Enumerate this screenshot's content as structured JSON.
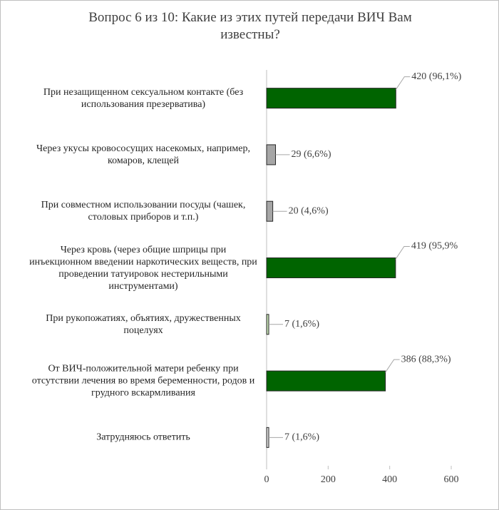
{
  "chart_data": {
    "type": "hbar",
    "title": "Вопрос 6 из 10: Какие из этих путей передачи ВИЧ Вам известны?",
    "categories": [
      "При  незащищенном сексуальном  контакте (без использования презерватива)",
      "Через укусы кровососущих насекомых, например,  комаров, клещей",
      "При совместном использовании посуды (чашек, столовых приборов и т.п.)",
      "Через кровь (через общие шприцы при инъекционном введении наркотических веществ, при проведении татуировок нестерильными инструментами)",
      "При рукопожатиях, объятиях,  дружественных поцелуях",
      "От ВИЧ-положительной матери ребенку при отсутствии лечения во время беременности, родов и грудного вскармливания",
      "Затрудняюсь  ответить"
    ],
    "values": [
      420,
      29,
      20,
      419,
      7,
      386,
      7
    ],
    "value_labels": [
      "420 (96,1%)",
      "29 (6,6%)",
      "20 (4,6%)",
      "419 (95,9%",
      "7 (1,6%)",
      "386 (88,3%)",
      "7 (1,6%)"
    ],
    "colors": [
      "#006400",
      "#a6a6a6",
      "#a6a6a6",
      "#006400",
      "#c5e0b4",
      "#006400",
      "#d9d9d9"
    ],
    "xlim": [
      0,
      600
    ],
    "xticks": [
      0,
      200,
      400,
      600
    ]
  }
}
